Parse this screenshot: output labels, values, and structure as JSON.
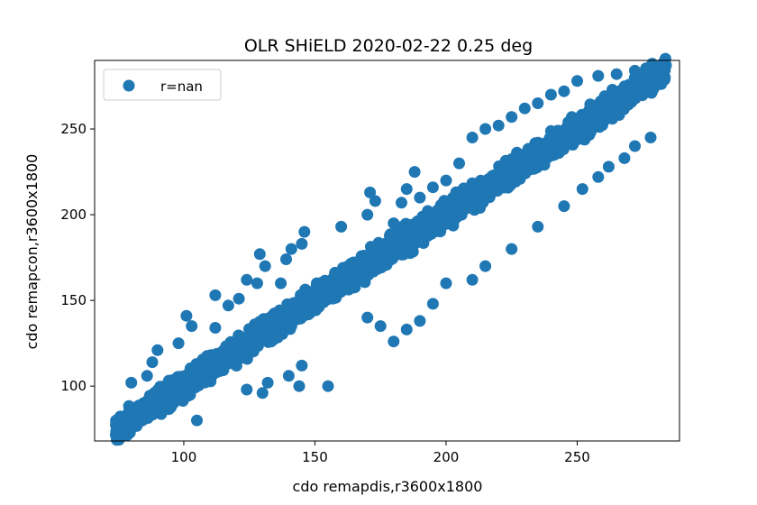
{
  "chart_data": {
    "type": "scatter",
    "title": "OLR SHiELD 2020-02-22 0.25 deg",
    "xlabel": "cdo remapdis,r3600x1800",
    "ylabel": "cdo remapcon,r3600x1800",
    "xlim": [
      66,
      289
    ],
    "ylim": [
      68,
      290
    ],
    "xticks": [
      100,
      150,
      200,
      250
    ],
    "yticks": [
      100,
      150,
      200,
      250
    ],
    "grid": false,
    "legend": {
      "position": "top-left",
      "entries": [
        {
          "label": "r=nan",
          "color": "#1f77b4"
        }
      ]
    },
    "series": [
      {
        "name": "r=nan",
        "color": "#1f77b4",
        "trend": {
          "x_range": [
            74,
            284
          ],
          "slope": 1.0,
          "intercept": 0.5,
          "band_halfwidth": 11
        },
        "outliers": [
          {
            "x": 80,
            "y": 102
          },
          {
            "x": 86,
            "y": 106
          },
          {
            "x": 88,
            "y": 114
          },
          {
            "x": 90,
            "y": 121
          },
          {
            "x": 98,
            "y": 125
          },
          {
            "x": 101,
            "y": 141
          },
          {
            "x": 103,
            "y": 135
          },
          {
            "x": 105,
            "y": 80
          },
          {
            "x": 112,
            "y": 153
          },
          {
            "x": 112,
            "y": 134
          },
          {
            "x": 117,
            "y": 147
          },
          {
            "x": 121,
            "y": 151
          },
          {
            "x": 124,
            "y": 162
          },
          {
            "x": 128,
            "y": 160
          },
          {
            "x": 129,
            "y": 177
          },
          {
            "x": 131,
            "y": 170
          },
          {
            "x": 124,
            "y": 98
          },
          {
            "x": 130,
            "y": 96
          },
          {
            "x": 132,
            "y": 102
          },
          {
            "x": 137,
            "y": 160
          },
          {
            "x": 139,
            "y": 174
          },
          {
            "x": 141,
            "y": 180
          },
          {
            "x": 145,
            "y": 183
          },
          {
            "x": 146,
            "y": 190
          },
          {
            "x": 140,
            "y": 106
          },
          {
            "x": 144,
            "y": 100
          },
          {
            "x": 145,
            "y": 112
          },
          {
            "x": 155,
            "y": 100
          },
          {
            "x": 160,
            "y": 193
          },
          {
            "x": 170,
            "y": 200
          },
          {
            "x": 173,
            "y": 208
          },
          {
            "x": 171,
            "y": 213
          },
          {
            "x": 180,
            "y": 195
          },
          {
            "x": 183,
            "y": 207
          },
          {
            "x": 185,
            "y": 215
          },
          {
            "x": 188,
            "y": 225
          },
          {
            "x": 190,
            "y": 210
          },
          {
            "x": 195,
            "y": 216
          },
          {
            "x": 200,
            "y": 220
          },
          {
            "x": 205,
            "y": 230
          },
          {
            "x": 210,
            "y": 245
          },
          {
            "x": 215,
            "y": 250
          },
          {
            "x": 220,
            "y": 252
          },
          {
            "x": 225,
            "y": 257
          },
          {
            "x": 230,
            "y": 262
          },
          {
            "x": 235,
            "y": 265
          },
          {
            "x": 240,
            "y": 270
          },
          {
            "x": 245,
            "y": 272
          },
          {
            "x": 250,
            "y": 278
          },
          {
            "x": 258,
            "y": 281
          },
          {
            "x": 265,
            "y": 282
          },
          {
            "x": 272,
            "y": 284
          },
          {
            "x": 282,
            "y": 283
          },
          {
            "x": 170,
            "y": 140
          },
          {
            "x": 175,
            "y": 135
          },
          {
            "x": 180,
            "y": 126
          },
          {
            "x": 185,
            "y": 133
          },
          {
            "x": 190,
            "y": 138
          },
          {
            "x": 195,
            "y": 148
          },
          {
            "x": 200,
            "y": 160
          },
          {
            "x": 210,
            "y": 162
          },
          {
            "x": 215,
            "y": 170
          },
          {
            "x": 225,
            "y": 180
          },
          {
            "x": 235,
            "y": 193
          },
          {
            "x": 245,
            "y": 205
          },
          {
            "x": 252,
            "y": 215
          },
          {
            "x": 258,
            "y": 222
          },
          {
            "x": 262,
            "y": 228
          },
          {
            "x": 268,
            "y": 233
          },
          {
            "x": 272,
            "y": 240
          },
          {
            "x": 278,
            "y": 245
          }
        ]
      }
    ]
  }
}
